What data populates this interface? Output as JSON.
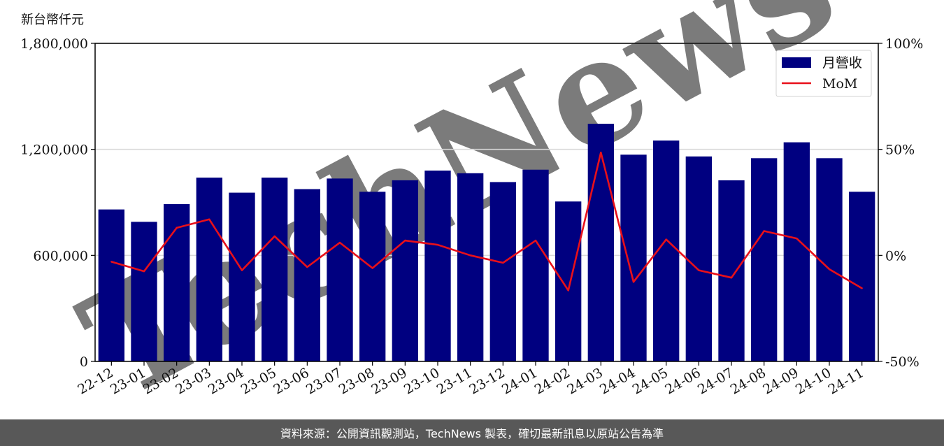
{
  "unit_label": "新台幣仟元",
  "footer_text": "資料來源：公開資訊觀測站，TechNews 製表，確切最新訊息以原站公告為準",
  "watermark": "TechNews",
  "colors": {
    "bar": "#000080",
    "line": "#e8101a",
    "grid": "#d9d9d9",
    "watermark": "#f2dede",
    "footer_bg": "#585858"
  },
  "chart_data": {
    "type": "bar",
    "categories": [
      "22-12",
      "23-01",
      "23-02",
      "23-03",
      "23-04",
      "23-05",
      "23-06",
      "23-07",
      "23-08",
      "23-09",
      "23-10",
      "23-11",
      "23-12",
      "24-01",
      "24-02",
      "24-03",
      "24-04",
      "24-05",
      "24-06",
      "24-07",
      "24-08",
      "24-09",
      "24-10",
      "24-11"
    ],
    "series": [
      {
        "name": "月營收",
        "type": "bar",
        "axis": "left",
        "values": [
          860000,
          790000,
          890000,
          1040000,
          955000,
          1040000,
          975000,
          1035000,
          960000,
          1025000,
          1080000,
          1065000,
          1015000,
          1085000,
          905000,
          1345000,
          1170000,
          1250000,
          1160000,
          1025000,
          1150000,
          1240000,
          1150000,
          960000
        ]
      },
      {
        "name": "MoM",
        "type": "line",
        "axis": "right",
        "values": [
          -3,
          -7.5,
          13,
          17,
          -7,
          9,
          -5.5,
          6,
          -6,
          7,
          5,
          0,
          -3.5,
          7,
          -16.5,
          48.5,
          -12.5,
          7.5,
          -7,
          -10.5,
          11.5,
          8,
          -6.5,
          -15.5
        ]
      }
    ],
    "y_left": {
      "ylim": [
        0,
        1800000
      ],
      "ticks": [
        "0",
        "600,000",
        "1,200,000",
        "1,800,000"
      ]
    },
    "y_right": {
      "ylim": [
        -50,
        100
      ],
      "ticks": [
        "-50%",
        "0%",
        "50%",
        "100%"
      ]
    },
    "grid": "horizontal",
    "legend_position": "top-right"
  }
}
